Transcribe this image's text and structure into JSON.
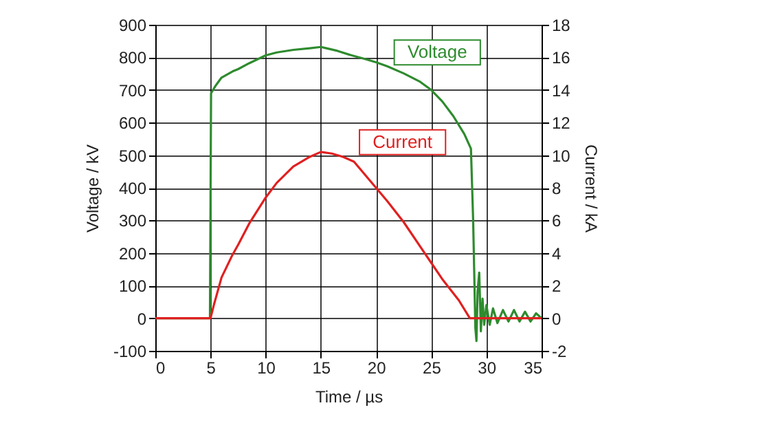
{
  "chart_data": {
    "type": "line",
    "xlabel": "Time / µs",
    "ylabel": "Voltage / kV",
    "y2label": "Current / kA",
    "xlim": [
      0,
      35
    ],
    "xticks": [
      0,
      5,
      10,
      15,
      20,
      25,
      30,
      35
    ],
    "ylim": [
      -100,
      900
    ],
    "yticks": [
      -100,
      0,
      100,
      200,
      300,
      400,
      500,
      600,
      700,
      800,
      900
    ],
    "y2lim": [
      -2,
      18
    ],
    "y2ticks": [
      -2,
      0,
      2,
      4,
      6,
      8,
      10,
      12,
      14,
      16,
      18
    ],
    "grid": true,
    "line_style": "solid",
    "marker": "none",
    "series": [
      {
        "name": "Voltage",
        "color": "#2e8b2e",
        "x": [
          0,
          4.95,
          5.05,
          5.5,
          6,
          7,
          7.5,
          8.5,
          10,
          11,
          12.5,
          14,
          15,
          15.5,
          16.5,
          17.8,
          19,
          20,
          21,
          22.5,
          24,
          25,
          26,
          27,
          28,
          28.6,
          28.8,
          29.0,
          29.1,
          29.2,
          29.35,
          29.5,
          29.65,
          29.8,
          30,
          30.3,
          30.6,
          31,
          31.5,
          32,
          32.5,
          33,
          33.5,
          34,
          34.5,
          35
        ],
        "values": [
          0,
          0,
          690,
          715,
          738,
          757,
          764,
          782,
          806,
          815,
          823,
          828,
          832,
          828,
          820,
          806,
          795,
          785,
          773,
          751,
          725,
          700,
          665,
          620,
          565,
          520,
          300,
          -30,
          -70,
          80,
          140,
          -40,
          60,
          -20,
          40,
          -20,
          30,
          -15,
          25,
          -10,
          25,
          -10,
          20,
          -10,
          15,
          0
        ]
      },
      {
        "name": "Current",
        "color": "#e02020",
        "axis": "y2",
        "x": [
          0,
          5,
          5.3,
          6,
          7,
          7.5,
          8.5,
          10,
          11,
          12.5,
          14,
          15,
          16,
          17,
          18,
          19,
          20,
          21,
          22.5,
          24,
          25,
          26,
          27.5,
          28.5,
          30,
          35
        ],
        "values": [
          0,
          0,
          0.8,
          2.5,
          3.9,
          4.5,
          5.8,
          7.4,
          8.3,
          9.3,
          9.9,
          10.2,
          10.1,
          9.9,
          9.6,
          8.8,
          8.0,
          7.2,
          5.9,
          4.4,
          3.4,
          2.4,
          1.1,
          0,
          0,
          0
        ]
      }
    ]
  }
}
